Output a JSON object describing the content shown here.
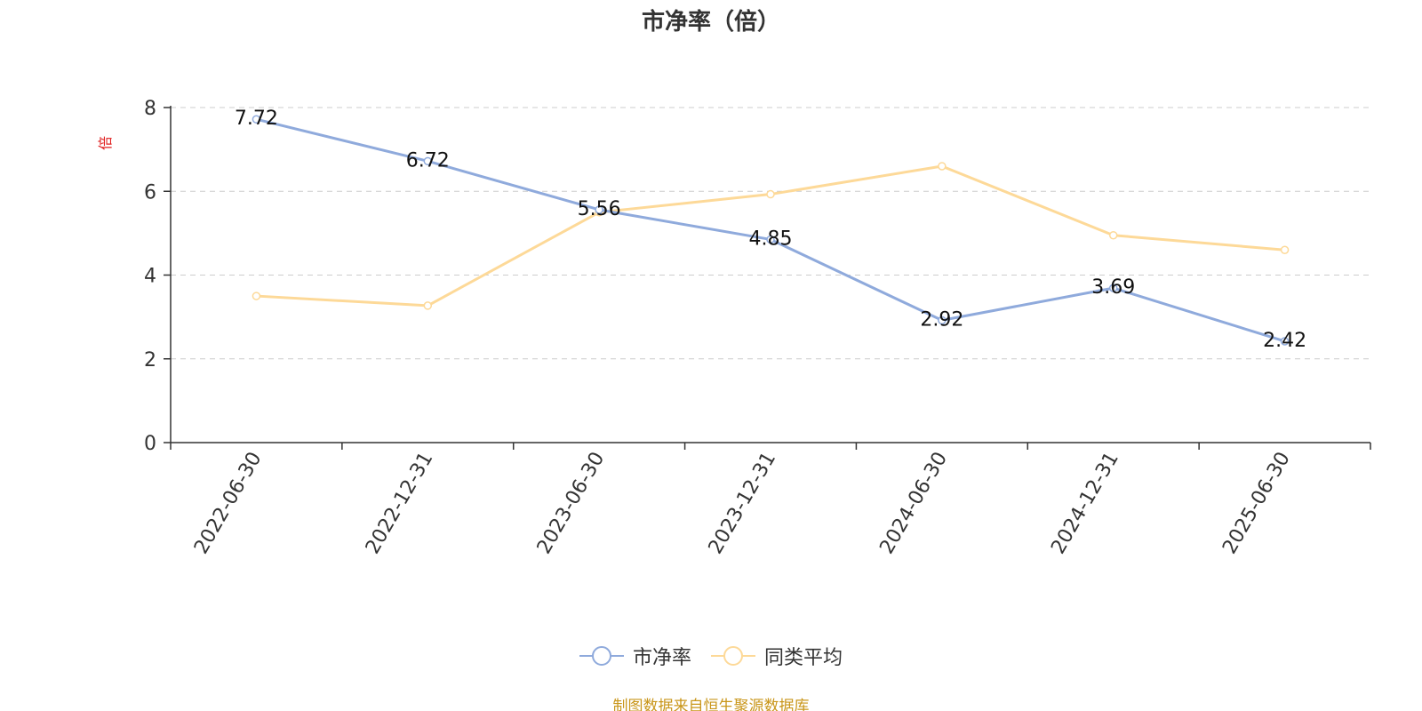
{
  "title": "市净率（倍）",
  "source_note": "制图数据来自恒生聚源数据库",
  "legend": {
    "items": [
      {
        "label": "市净率",
        "color": "#8faadc"
      },
      {
        "label": "同类平均",
        "color": "#fdd998"
      }
    ]
  },
  "chart_data": {
    "type": "line",
    "title": "市净率（倍）",
    "xlabel": "",
    "ylabel": "倍",
    "ylim": [
      0,
      8
    ],
    "yticks": [
      0,
      2,
      4,
      6,
      8
    ],
    "grid": true,
    "legend_position": "bottom",
    "categories": [
      "2022-06-30",
      "2022-12-31",
      "2023-06-30",
      "2023-12-31",
      "2024-06-30",
      "2024-12-31",
      "2025-06-30"
    ],
    "series": [
      {
        "name": "市净率",
        "color": "#8faadc",
        "values": [
          7.72,
          6.72,
          5.56,
          4.85,
          2.92,
          3.69,
          2.42
        ],
        "labels": [
          "7.72",
          "6.72",
          "5.56",
          "4.85",
          "2.92",
          "3.69",
          "2.42"
        ],
        "show_labels": true
      },
      {
        "name": "同类平均",
        "color": "#fdd998",
        "values": [
          3.5,
          3.27,
          5.5,
          5.93,
          6.6,
          4.95,
          4.6
        ],
        "show_labels": false
      }
    ]
  }
}
